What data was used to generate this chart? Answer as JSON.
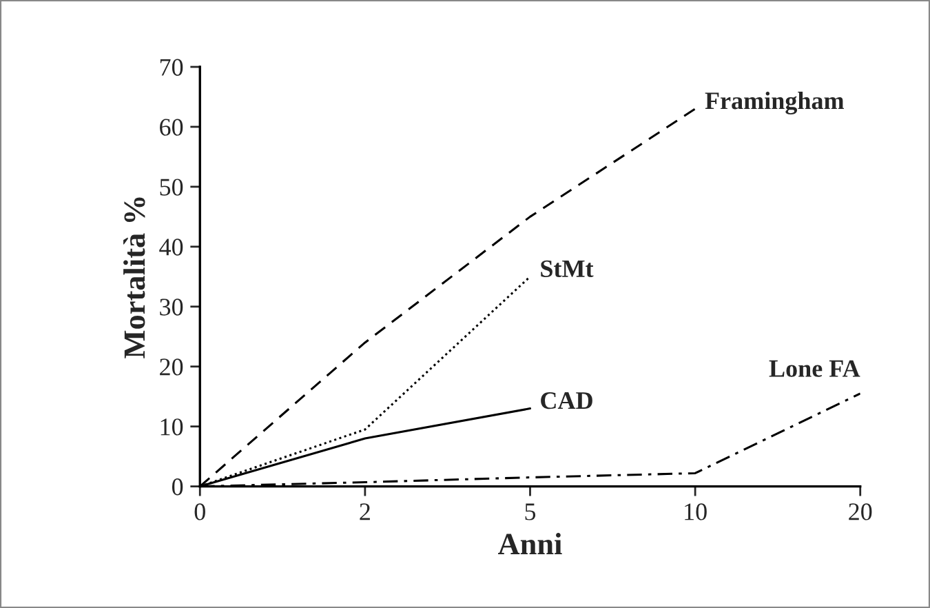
{
  "chart_data": {
    "type": "line",
    "xlabel": "Anni",
    "ylabel": "Mortalità %",
    "categories": [
      "0",
      "2",
      "5",
      "10",
      "20"
    ],
    "series": [
      {
        "name": "Framingham",
        "color": "#000000",
        "line_style": "dashed",
        "values": [
          0,
          24,
          45,
          63,
          null
        ]
      },
      {
        "name": "StMt",
        "color": "#000000",
        "line_style": "dotted",
        "values": [
          0,
          9.5,
          35,
          null,
          null
        ]
      },
      {
        "name": "CAD",
        "color": "#000000",
        "line_style": "solid",
        "values": [
          0,
          8,
          13,
          null,
          null
        ]
      },
      {
        "name": "Lone FA",
        "color": "#000000",
        "line_style": "dashdot",
        "values": [
          0,
          0.7,
          1.5,
          2.2,
          15.5
        ]
      }
    ],
    "ylim": [
      0,
      70
    ],
    "yticks": [
      0,
      10,
      20,
      30,
      40,
      50,
      60,
      70
    ],
    "grid": false,
    "legend": false
  }
}
